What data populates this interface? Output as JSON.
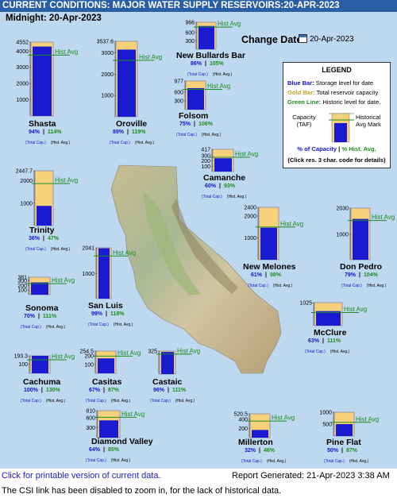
{
  "header": {
    "title": "CURRENT CONDITIONS: MAJOR WATER SUPPLY RESERVOIRS:20-APR-2023"
  },
  "midnight": "Midnight: 20-Apr-2023",
  "change_date": {
    "label": "Change Date:",
    "value": "20-Apr-2023",
    "icon": "calendar-icon"
  },
  "legend": {
    "title": "LEGEND",
    "blue_key": "Blue Bar:",
    "blue_text": "Storage level for date",
    "gold_key": "Gold Bar:",
    "gold_text": "Total reservoir capacity",
    "green_key": "Green Line:",
    "green_text": "Historic level for date.",
    "capacity_label": "Capacity (TAF)",
    "historical_label": "Historical Avg Mark",
    "pct_capacity": "% of Capacity",
    "pct_sep": "|",
    "pct_hist": "% Hist. Avg.",
    "click_note": "(Click res. 3 char. code for details)"
  },
  "footer": {
    "printable_link": "Click for printable version of current data.",
    "report_generated": "Report Generated: 21-Apr-2023 3:38 AM",
    "csi_note": "The CSI link has been disabled to zoom in, for the lack of historical data."
  },
  "colors": {
    "header_bg": "#2a5fa6",
    "panel_bg": "#bdd8ef",
    "storage_bar": "#1a1ad0",
    "capacity_bar": "#f5d27a",
    "hist_line": "#1e8c1e"
  },
  "chart_data": {
    "type": "bar",
    "hist_label": "Hist Avg",
    "total_cap_label": "(Total Cap.)",
    "hist_avg_label": "(Hist. Avg.)",
    "reservoirs": [
      {
        "name": "Shasta",
        "capacity": 4552,
        "storage": 4279,
        "hist_avg": 3753,
        "pct_capacity": "94%",
        "pct_hist": "114%",
        "ticks": [
          "4552",
          "4000",
          "3000",
          "2000",
          "1000"
        ]
      },
      {
        "name": "Oroville",
        "capacity": 3537.6,
        "storage": 3148,
        "hist_avg": 2645,
        "pct_capacity": "89%",
        "pct_hist": "119%",
        "ticks": [
          "3537.6",
          "3000",
          "2000",
          "1000"
        ]
      },
      {
        "name": "New Bullards Bar",
        "capacity": 966,
        "storage": 831,
        "hist_avg": 791,
        "pct_capacity": "86%",
        "pct_hist": "105%",
        "ticks": [
          "966",
          "600",
          "300"
        ]
      },
      {
        "name": "Folsom",
        "capacity": 977,
        "storage": 733,
        "hist_avg": 691,
        "pct_capacity": "75%",
        "pct_hist": "106%",
        "ticks": [
          "977",
          "600",
          "300"
        ]
      },
      {
        "name": "Camanche",
        "capacity": 417,
        "storage": 250,
        "hist_avg": 269,
        "pct_capacity": "60%",
        "pct_hist": "93%",
        "ticks": [
          "417",
          "300",
          "200",
          "100"
        ]
      },
      {
        "name": "Trinity",
        "capacity": 2447.7,
        "storage": 881,
        "hist_avg": 1875,
        "pct_capacity": "36%",
        "pct_hist": "47%",
        "ticks": [
          "2447.7",
          "2000",
          "1000"
        ]
      },
      {
        "name": "New Melones",
        "capacity": 2400,
        "storage": 1464,
        "hist_avg": 1494,
        "pct_capacity": "61%",
        "pct_hist": "98%",
        "ticks": [
          "2400",
          "2000",
          "1000"
        ]
      },
      {
        "name": "Don Pedro",
        "capacity": 2030,
        "storage": 1604,
        "hist_avg": 1542,
        "pct_capacity": "79%",
        "pct_hist": "104%",
        "ticks": [
          "2030",
          "1000"
        ]
      },
      {
        "name": "San Luis",
        "capacity": 2041,
        "storage": 2021,
        "hist_avg": 1713,
        "pct_capacity": "99%",
        "pct_hist": "118%",
        "ticks": [
          "2041",
          "1000"
        ]
      },
      {
        "name": "Sonoma",
        "capacity": 381,
        "storage": 267,
        "hist_avg": 240,
        "pct_capacity": "70%",
        "pct_hist": "111%",
        "ticks": [
          "381",
          "300",
          "200",
          "100"
        ]
      },
      {
        "name": "McClure",
        "capacity": 1025,
        "storage": 646,
        "hist_avg": 582,
        "pct_capacity": "63%",
        "pct_hist": "111%",
        "ticks": [
          "1025"
        ]
      },
      {
        "name": "Cachuma",
        "capacity": 193.3,
        "storage": 193.3,
        "hist_avg": 149,
        "pct_capacity": "100%",
        "pct_hist": "130%",
        "ticks": [
          "193.3",
          "100"
        ]
      },
      {
        "name": "Casitas",
        "capacity": 254.5,
        "storage": 171,
        "hist_avg": 196,
        "pct_capacity": "67%",
        "pct_hist": "87%",
        "ticks": [
          "254.5",
          "200",
          "100"
        ]
      },
      {
        "name": "Castaic",
        "capacity": 325,
        "storage": 312,
        "hist_avg": 281,
        "pct_capacity": "96%",
        "pct_hist": "111%",
        "ticks": [
          "325"
        ]
      },
      {
        "name": "Diamond Valley",
        "capacity": 810,
        "storage": 518,
        "hist_avg": 610,
        "pct_capacity": "64%",
        "pct_hist": "85%",
        "ticks": [
          "810",
          "600",
          "300"
        ]
      },
      {
        "name": "Millerton",
        "capacity": 520.5,
        "storage": 167,
        "hist_avg": 362,
        "pct_capacity": "32%",
        "pct_hist": "46%",
        "ticks": [
          "520.5",
          "400",
          "200"
        ]
      },
      {
        "name": "Pine Flat",
        "capacity": 1000,
        "storage": 500,
        "hist_avg": 575,
        "pct_capacity": "50%",
        "pct_hist": "87%",
        "ticks": [
          "1000",
          "500"
        ]
      }
    ]
  }
}
